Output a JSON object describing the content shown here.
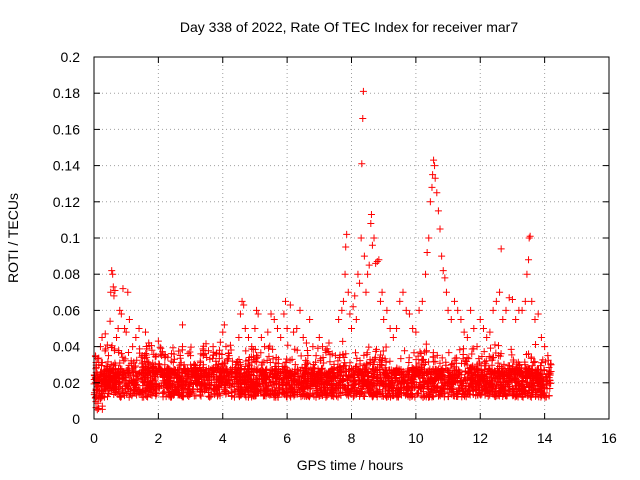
{
  "chart_data": {
    "type": "scatter",
    "title": "Day 338 of 2022, Rate Of TEC Index for receiver mar7",
    "xlabel": "GPS time / hours",
    "ylabel": "ROTI / TECUs",
    "xlim": [
      0,
      16
    ],
    "ylim": [
      0,
      0.2
    ],
    "x_ticks": [
      0,
      2,
      4,
      6,
      8,
      10,
      12,
      14,
      16
    ],
    "y_ticks": [
      0,
      0.02,
      0.04,
      0.06,
      0.08,
      0.1,
      0.12,
      0.14,
      0.16,
      0.18,
      0.2
    ],
    "x_tick_labels": [
      "0",
      "2",
      "4",
      "6",
      "8",
      "10",
      "12",
      "14",
      "16"
    ],
    "y_tick_labels": [
      "0",
      "0.02",
      "0.04",
      "0.06",
      "0.08",
      "0.1",
      "0.12",
      "0.14",
      "0.16",
      "0.18",
      "0.2"
    ],
    "grid": true,
    "marker": "+",
    "color": "#ff0000",
    "series": [
      {
        "name": "ROTI",
        "points": [
          [
            0.05,
            0.012
          ],
          [
            0.1,
            0.025
          ],
          [
            0.15,
            0.03
          ],
          [
            0.2,
            0.04
          ],
          [
            0.25,
            0.045
          ],
          [
            0.3,
            0.02
          ],
          [
            0.35,
            0.047
          ],
          [
            0.4,
            0.018
          ],
          [
            0.45,
            0.035
          ],
          [
            0.5,
            0.054
          ],
          [
            0.52,
            0.07
          ],
          [
            0.55,
            0.082
          ],
          [
            0.58,
            0.08
          ],
          [
            0.6,
            0.073
          ],
          [
            0.62,
            0.068
          ],
          [
            0.65,
            0.071
          ],
          [
            0.7,
            0.045
          ],
          [
            0.75,
            0.05
          ],
          [
            0.8,
            0.06
          ],
          [
            0.85,
            0.058
          ],
          [
            0.9,
            0.072
          ],
          [
            0.95,
            0.05
          ],
          [
            1.0,
            0.048
          ],
          [
            1.05,
            0.07
          ],
          [
            1.1,
            0.055
          ],
          [
            1.2,
            0.04
          ],
          [
            1.3,
            0.045
          ],
          [
            1.4,
            0.05
          ],
          [
            1.5,
            0.035
          ],
          [
            1.6,
            0.048
          ],
          [
            1.7,
            0.042
          ],
          [
            1.8,
            0.038
          ],
          [
            1.9,
            0.03
          ],
          [
            2.0,
            0.043
          ],
          [
            2.1,
            0.035
          ],
          [
            2.2,
            0.03
          ],
          [
            2.3,
            0.028
          ],
          [
            2.4,
            0.032
          ],
          [
            2.5,
            0.033
          ],
          [
            2.6,
            0.025
          ],
          [
            2.7,
            0.03
          ],
          [
            2.75,
            0.052
          ],
          [
            2.8,
            0.03
          ],
          [
            2.9,
            0.028
          ],
          [
            3.0,
            0.035
          ],
          [
            3.1,
            0.03
          ],
          [
            3.2,
            0.028
          ],
          [
            3.3,
            0.032
          ],
          [
            3.4,
            0.03
          ],
          [
            3.5,
            0.034
          ],
          [
            3.6,
            0.033
          ],
          [
            3.7,
            0.04
          ],
          [
            3.8,
            0.036
          ],
          [
            3.9,
            0.038
          ],
          [
            4.0,
            0.048
          ],
          [
            4.05,
            0.052
          ],
          [
            4.1,
            0.04
          ],
          [
            4.2,
            0.035
          ],
          [
            4.3,
            0.032
          ],
          [
            4.4,
            0.03
          ],
          [
            4.5,
            0.045
          ],
          [
            4.55,
            0.058
          ],
          [
            4.6,
            0.065
          ],
          [
            4.65,
            0.063
          ],
          [
            4.7,
            0.05
          ],
          [
            4.8,
            0.045
          ],
          [
            4.9,
            0.04
          ],
          [
            5.0,
            0.05
          ],
          [
            5.05,
            0.06
          ],
          [
            5.1,
            0.058
          ],
          [
            5.2,
            0.045
          ],
          [
            5.3,
            0.04
          ],
          [
            5.4,
            0.048
          ],
          [
            5.5,
            0.058
          ],
          [
            5.6,
            0.055
          ],
          [
            5.7,
            0.05
          ],
          [
            5.8,
            0.045
          ],
          [
            5.9,
            0.058
          ],
          [
            5.95,
            0.065
          ],
          [
            6.0,
            0.05
          ],
          [
            6.1,
            0.063
          ],
          [
            6.2,
            0.048
          ],
          [
            6.3,
            0.05
          ],
          [
            6.4,
            0.06
          ],
          [
            6.5,
            0.045
          ],
          [
            6.6,
            0.042
          ],
          [
            6.7,
            0.055
          ],
          [
            6.8,
            0.04
          ],
          [
            6.9,
            0.035
          ],
          [
            7.0,
            0.045
          ],
          [
            7.1,
            0.04
          ],
          [
            7.2,
            0.038
          ],
          [
            7.3,
            0.042
          ],
          [
            7.4,
            0.036
          ],
          [
            7.5,
            0.035
          ],
          [
            7.6,
            0.055
          ],
          [
            7.7,
            0.06
          ],
          [
            7.75,
            0.065
          ],
          [
            7.8,
            0.08
          ],
          [
            7.82,
            0.095
          ],
          [
            7.85,
            0.102
          ],
          [
            7.9,
            0.07
          ],
          [
            7.95,
            0.058
          ],
          [
            8.0,
            0.05
          ],
          [
            8.05,
            0.062
          ],
          [
            8.1,
            0.068
          ],
          [
            8.15,
            0.055
          ],
          [
            8.2,
            0.08
          ],
          [
            8.25,
            0.075
          ],
          [
            8.3,
            0.1
          ],
          [
            8.32,
            0.141
          ],
          [
            8.35,
            0.166
          ],
          [
            8.37,
            0.181
          ],
          [
            8.4,
            0.09
          ],
          [
            8.45,
            0.07
          ],
          [
            8.5,
            0.08
          ],
          [
            8.55,
            0.085
          ],
          [
            8.6,
            0.108
          ],
          [
            8.62,
            0.113
          ],
          [
            8.65,
            0.096
          ],
          [
            8.7,
            0.1
          ],
          [
            8.75,
            0.086
          ],
          [
            8.8,
            0.087
          ],
          [
            8.85,
            0.088
          ],
          [
            8.9,
            0.065
          ],
          [
            8.95,
            0.07
          ],
          [
            9.0,
            0.055
          ],
          [
            9.1,
            0.06
          ],
          [
            9.2,
            0.05
          ],
          [
            9.3,
            0.045
          ],
          [
            9.4,
            0.05
          ],
          [
            9.5,
            0.065
          ],
          [
            9.6,
            0.07
          ],
          [
            9.7,
            0.06
          ],
          [
            9.8,
            0.058
          ],
          [
            9.9,
            0.05
          ],
          [
            10.0,
            0.048
          ],
          [
            10.1,
            0.06
          ],
          [
            10.2,
            0.065
          ],
          [
            10.3,
            0.08
          ],
          [
            10.35,
            0.092
          ],
          [
            10.4,
            0.1
          ],
          [
            10.45,
            0.12
          ],
          [
            10.5,
            0.128
          ],
          [
            10.52,
            0.135
          ],
          [
            10.55,
            0.143
          ],
          [
            10.58,
            0.14
          ],
          [
            10.6,
            0.133
          ],
          [
            10.65,
            0.125
          ],
          [
            10.7,
            0.115
          ],
          [
            10.75,
            0.105
          ],
          [
            10.8,
            0.09
          ],
          [
            10.85,
            0.082
          ],
          [
            10.9,
            0.078
          ],
          [
            10.95,
            0.07
          ],
          [
            11.0,
            0.06
          ],
          [
            11.1,
            0.055
          ],
          [
            11.2,
            0.065
          ],
          [
            11.3,
            0.06
          ],
          [
            11.4,
            0.055
          ],
          [
            11.5,
            0.048
          ],
          [
            11.6,
            0.045
          ],
          [
            11.7,
            0.06
          ],
          [
            11.8,
            0.05
          ],
          [
            11.9,
            0.04
          ],
          [
            12.0,
            0.055
          ],
          [
            12.1,
            0.05
          ],
          [
            12.2,
            0.045
          ],
          [
            12.3,
            0.048
          ],
          [
            12.4,
            0.06
          ],
          [
            12.5,
            0.065
          ],
          [
            12.6,
            0.07
          ],
          [
            12.65,
            0.094
          ],
          [
            12.7,
            0.055
          ],
          [
            12.8,
            0.06
          ],
          [
            12.9,
            0.067
          ],
          [
            13.0,
            0.066
          ],
          [
            13.1,
            0.055
          ],
          [
            13.2,
            0.06
          ],
          [
            13.3,
            0.06
          ],
          [
            13.4,
            0.065
          ],
          [
            13.45,
            0.08
          ],
          [
            13.5,
            0.088
          ],
          [
            13.52,
            0.1
          ],
          [
            13.55,
            0.101
          ],
          [
            13.6,
            0.065
          ],
          [
            13.7,
            0.055
          ],
          [
            13.8,
            0.058
          ],
          [
            13.9,
            0.045
          ],
          [
            14.0,
            0.04
          ],
          [
            14.1,
            0.035
          ],
          [
            14.2,
            0.03
          ]
        ]
      }
    ]
  },
  "colors": {
    "marker": "#ff0000",
    "grid": "#a0a0a0",
    "axis": "#000000"
  }
}
